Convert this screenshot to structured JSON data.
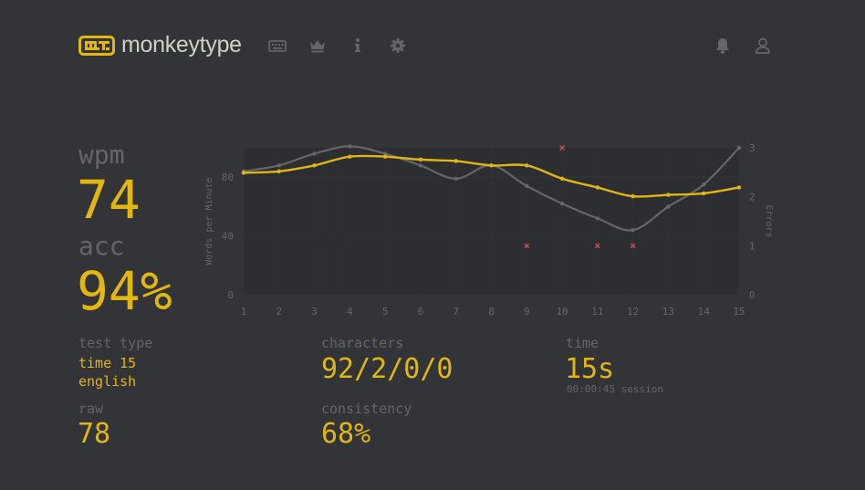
{
  "app": {
    "name": "monkeytype",
    "accent": "#e2b714",
    "background": "#323437",
    "text_color": "#d1d0c5",
    "sub_color": "#646669",
    "error_color": "#ca4754"
  },
  "nav": {
    "icons": [
      "keyboard-icon",
      "crown-icon",
      "info-icon",
      "gear-icon"
    ],
    "right_icons": [
      "bell-icon",
      "user-icon"
    ]
  },
  "stats": {
    "wpm_label": "wpm",
    "wpm_value": "74",
    "acc_label": "acc",
    "acc_value": "94%"
  },
  "details": {
    "test_type_label": "test type",
    "test_type_line1": "time 15",
    "test_type_line2": "english",
    "raw_label": "raw",
    "raw_value": "78",
    "characters_label": "characters",
    "characters_value": "92/2/0/0",
    "consistency_label": "consistency",
    "consistency_value": "68%",
    "time_label": "time",
    "time_value": "15s",
    "session_value": "00:00:45 session"
  },
  "chart_data": {
    "type": "line",
    "x": [
      1,
      2,
      3,
      4,
      5,
      6,
      7,
      8,
      9,
      10,
      11,
      12,
      13,
      14,
      15
    ],
    "x_ticks": [
      "1",
      "2",
      "3",
      "4",
      "5",
      "6",
      "7",
      "8",
      "9",
      "10",
      "11",
      "12",
      "13",
      "14",
      "15"
    ],
    "ylabel": "Words per Minute",
    "y2label": "Errors",
    "ylim": [
      0,
      100
    ],
    "y_ticks": [
      "0",
      "40",
      "80"
    ],
    "y_tick_values": [
      0,
      40,
      80
    ],
    "y2lim": [
      0,
      3
    ],
    "y2_ticks": [
      "0",
      "1",
      "2",
      "3"
    ],
    "y2_tick_values": [
      0,
      1,
      2,
      3
    ],
    "series": [
      {
        "role": "wpm",
        "color": "#e2b714",
        "values": [
          83,
          84,
          88,
          94,
          94,
          92,
          91,
          88,
          88,
          79,
          73,
          67,
          68,
          69,
          73
        ]
      },
      {
        "role": "raw",
        "color": "#646669",
        "values": [
          84,
          88,
          96,
          101,
          96,
          88,
          79,
          88,
          74,
          62,
          52,
          44,
          60,
          75,
          100
        ]
      }
    ],
    "errors": [
      {
        "x": 9,
        "y": 1
      },
      {
        "x": 10,
        "y": 3
      },
      {
        "x": 11,
        "y": 1
      },
      {
        "x": 12,
        "y": 1
      }
    ],
    "grid": true,
    "legend": "none"
  }
}
